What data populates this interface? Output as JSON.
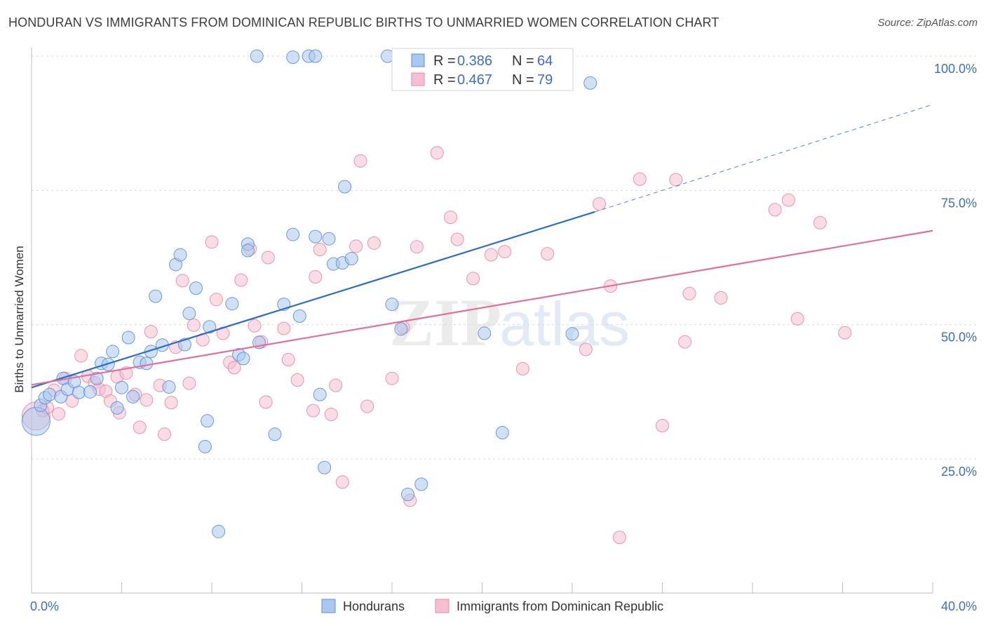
{
  "header": {
    "title": "HONDURAN VS IMMIGRANTS FROM DOMINICAN REPUBLIC BIRTHS TO UNMARRIED WOMEN CORRELATION CHART",
    "source": "Source: ZipAtlas.com"
  },
  "watermark": "ZIPatlas",
  "colors": {
    "blue_fill": "#a9c8ef",
    "blue_stroke": "#5b8fd6",
    "blue_line": "#2a6cc8",
    "pink_fill": "#f6bfd0",
    "pink_stroke": "#e58aa8",
    "pink_line": "#e2709a",
    "grid": "#d9d9d9",
    "label_blue": "#3a6fc4"
  },
  "legend": {
    "items": [
      {
        "r_label": "R =",
        "r_value": "0.386",
        "n_label": "N =",
        "n_value": "64"
      },
      {
        "r_label": "R =",
        "r_value": "0.467",
        "n_label": "N =",
        "n_value": "79"
      }
    ]
  },
  "chart_data": {
    "type": "scatter",
    "title": "HONDURAN VS IMMIGRANTS FROM DOMINICAN REPUBLIC BIRTHS TO UNMARRIED WOMEN CORRELATION CHART",
    "xlabel": "",
    "ylabel": "Births to Unmarried Women",
    "xlim": [
      0,
      40
    ],
    "ylim": [
      0,
      102
    ],
    "x_tick_labels": [
      "0.0%",
      "40.0%"
    ],
    "y_ticks": [
      25,
      50,
      75,
      100
    ],
    "y_tick_labels": [
      "25.0%",
      "50.0%",
      "75.0%",
      "100.0%"
    ],
    "grid": true,
    "legend_position": "bottom",
    "series": [
      {
        "name": "Hondurans",
        "color": "blue",
        "r": 0.386,
        "n": 64,
        "trend": {
          "x0": 0,
          "y0": 38.3,
          "x1": 25,
          "y1": 71.0,
          "dashed_to_x": 40,
          "dashed_to_y": 91.0
        },
        "points": [
          {
            "x": 0.2,
            "y": 32.0,
            "big": true
          },
          {
            "x": 0.4,
            "y": 35.0
          },
          {
            "x": 0.6,
            "y": 36.4
          },
          {
            "x": 0.8,
            "y": 37.0
          },
          {
            "x": 1.3,
            "y": 36.6
          },
          {
            "x": 1.4,
            "y": 40.0
          },
          {
            "x": 1.6,
            "y": 38.0
          },
          {
            "x": 1.9,
            "y": 39.4
          },
          {
            "x": 2.1,
            "y": 37.4
          },
          {
            "x": 2.6,
            "y": 37.5
          },
          {
            "x": 2.9,
            "y": 40.0
          },
          {
            "x": 3.1,
            "y": 42.8
          },
          {
            "x": 3.4,
            "y": 42.6
          },
          {
            "x": 3.6,
            "y": 45.0
          },
          {
            "x": 3.8,
            "y": 34.5
          },
          {
            "x": 4.0,
            "y": 38.3
          },
          {
            "x": 4.3,
            "y": 47.6
          },
          {
            "x": 4.5,
            "y": 36.6
          },
          {
            "x": 4.8,
            "y": 43.0
          },
          {
            "x": 5.1,
            "y": 42.8
          },
          {
            "x": 5.3,
            "y": 45.0
          },
          {
            "x": 5.5,
            "y": 55.3
          },
          {
            "x": 5.8,
            "y": 46.2
          },
          {
            "x": 6.1,
            "y": 38.4
          },
          {
            "x": 6.4,
            "y": 61.2
          },
          {
            "x": 6.6,
            "y": 63.0
          },
          {
            "x": 6.8,
            "y": 46.3
          },
          {
            "x": 7.0,
            "y": 52.1
          },
          {
            "x": 7.3,
            "y": 56.8
          },
          {
            "x": 7.7,
            "y": 27.3
          },
          {
            "x": 7.8,
            "y": 32.1
          },
          {
            "x": 7.9,
            "y": 49.6
          },
          {
            "x": 8.3,
            "y": 11.5
          },
          {
            "x": 8.9,
            "y": 53.9
          },
          {
            "x": 9.2,
            "y": 44.4
          },
          {
            "x": 9.4,
            "y": 43.7
          },
          {
            "x": 9.6,
            "y": 65.0
          },
          {
            "x": 9.6,
            "y": 63.8
          },
          {
            "x": 10.0,
            "y": 100.0
          },
          {
            "x": 10.1,
            "y": 46.7
          },
          {
            "x": 10.8,
            "y": 29.6
          },
          {
            "x": 11.2,
            "y": 53.8
          },
          {
            "x": 11.6,
            "y": 66.8
          },
          {
            "x": 11.6,
            "y": 99.8
          },
          {
            "x": 11.9,
            "y": 51.6
          },
          {
            "x": 12.3,
            "y": 100.0
          },
          {
            "x": 12.6,
            "y": 100.0
          },
          {
            "x": 12.6,
            "y": 66.4
          },
          {
            "x": 12.8,
            "y": 37.0
          },
          {
            "x": 13.0,
            "y": 23.4
          },
          {
            "x": 13.2,
            "y": 66.0
          },
          {
            "x": 13.4,
            "y": 61.3
          },
          {
            "x": 13.8,
            "y": 61.5
          },
          {
            "x": 13.9,
            "y": 75.7
          },
          {
            "x": 14.2,
            "y": 62.3
          },
          {
            "x": 15.8,
            "y": 100.0
          },
          {
            "x": 16.0,
            "y": 53.8
          },
          {
            "x": 16.4,
            "y": 49.2
          },
          {
            "x": 16.7,
            "y": 18.4
          },
          {
            "x": 17.3,
            "y": 20.3
          },
          {
            "x": 20.1,
            "y": 48.4
          },
          {
            "x": 20.9,
            "y": 29.9
          },
          {
            "x": 24.0,
            "y": 48.3
          },
          {
            "x": 24.8,
            "y": 95.0
          }
        ]
      },
      {
        "name": "Immigrants from Dominican Republic",
        "color": "pink",
        "r": 0.467,
        "n": 79,
        "trend": {
          "x0": 0,
          "y0": 38.8,
          "x1": 40,
          "y1": 67.5
        },
        "points": [
          {
            "x": 0.2,
            "y": 33.0,
            "big": true
          },
          {
            "x": 0.5,
            "y": 34.0
          },
          {
            "x": 0.7,
            "y": 34.6
          },
          {
            "x": 1.0,
            "y": 37.8
          },
          {
            "x": 1.2,
            "y": 33.4
          },
          {
            "x": 1.5,
            "y": 40.0
          },
          {
            "x": 1.8,
            "y": 35.8
          },
          {
            "x": 2.2,
            "y": 44.2
          },
          {
            "x": 2.5,
            "y": 40.4
          },
          {
            "x": 2.8,
            "y": 39.2
          },
          {
            "x": 3.0,
            "y": 38.0
          },
          {
            "x": 3.3,
            "y": 37.6
          },
          {
            "x": 3.5,
            "y": 35.8
          },
          {
            "x": 3.8,
            "y": 40.3
          },
          {
            "x": 3.9,
            "y": 33.6
          },
          {
            "x": 4.2,
            "y": 41.0
          },
          {
            "x": 4.6,
            "y": 37.0
          },
          {
            "x": 4.8,
            "y": 30.9
          },
          {
            "x": 5.1,
            "y": 36.0
          },
          {
            "x": 5.3,
            "y": 48.7
          },
          {
            "x": 5.7,
            "y": 38.7
          },
          {
            "x": 5.9,
            "y": 29.6
          },
          {
            "x": 6.2,
            "y": 35.5
          },
          {
            "x": 6.4,
            "y": 45.8
          },
          {
            "x": 6.7,
            "y": 58.2
          },
          {
            "x": 7.0,
            "y": 39.1
          },
          {
            "x": 7.2,
            "y": 49.9
          },
          {
            "x": 7.6,
            "y": 47.2
          },
          {
            "x": 8.0,
            "y": 65.4
          },
          {
            "x": 8.2,
            "y": 54.7
          },
          {
            "x": 8.5,
            "y": 48.4
          },
          {
            "x": 8.8,
            "y": 43.0
          },
          {
            "x": 9.0,
            "y": 42.0
          },
          {
            "x": 9.3,
            "y": 58.3
          },
          {
            "x": 9.7,
            "y": 64.1
          },
          {
            "x": 9.9,
            "y": 49.8
          },
          {
            "x": 10.2,
            "y": 46.8
          },
          {
            "x": 10.4,
            "y": 35.6
          },
          {
            "x": 10.5,
            "y": 62.5
          },
          {
            "x": 11.2,
            "y": 49.3
          },
          {
            "x": 11.4,
            "y": 43.5
          },
          {
            "x": 11.8,
            "y": 39.7
          },
          {
            "x": 12.5,
            "y": 34.0
          },
          {
            "x": 12.6,
            "y": 58.9
          },
          {
            "x": 12.8,
            "y": 64.0
          },
          {
            "x": 13.3,
            "y": 33.3
          },
          {
            "x": 13.5,
            "y": 38.7
          },
          {
            "x": 14.4,
            "y": 64.6
          },
          {
            "x": 13.8,
            "y": 20.7
          },
          {
            "x": 14.6,
            "y": 80.5
          },
          {
            "x": 14.9,
            "y": 34.8
          },
          {
            "x": 15.2,
            "y": 65.2
          },
          {
            "x": 16.0,
            "y": 40.0
          },
          {
            "x": 16.5,
            "y": 49.5
          },
          {
            "x": 16.8,
            "y": 17.3
          },
          {
            "x": 17.1,
            "y": 64.5
          },
          {
            "x": 18.0,
            "y": 82.0
          },
          {
            "x": 18.6,
            "y": 70.0
          },
          {
            "x": 18.9,
            "y": 65.9
          },
          {
            "x": 19.6,
            "y": 58.6
          },
          {
            "x": 20.4,
            "y": 63.0
          },
          {
            "x": 21.0,
            "y": 63.6
          },
          {
            "x": 21.8,
            "y": 41.8
          },
          {
            "x": 22.9,
            "y": 63.2
          },
          {
            "x": 24.6,
            "y": 45.4
          },
          {
            "x": 25.2,
            "y": 72.5
          },
          {
            "x": 25.7,
            "y": 57.2
          },
          {
            "x": 26.1,
            "y": 10.4
          },
          {
            "x": 27.0,
            "y": 77.1
          },
          {
            "x": 28.0,
            "y": 31.2
          },
          {
            "x": 28.6,
            "y": 77.0
          },
          {
            "x": 29.0,
            "y": 46.8
          },
          {
            "x": 29.2,
            "y": 55.8
          },
          {
            "x": 30.6,
            "y": 55.0
          },
          {
            "x": 33.0,
            "y": 71.4
          },
          {
            "x": 33.6,
            "y": 73.2
          },
          {
            "x": 34.0,
            "y": 51.1
          },
          {
            "x": 35.0,
            "y": 69.0
          },
          {
            "x": 36.1,
            "y": 48.5
          }
        ]
      }
    ]
  }
}
